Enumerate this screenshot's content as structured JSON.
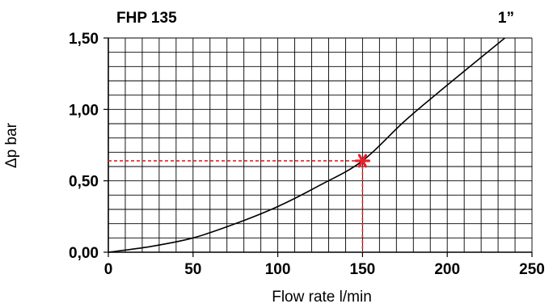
{
  "chart_data": {
    "type": "line",
    "title": "FHP 135",
    "title_right": "1”",
    "xlabel": "Flow rate l/min",
    "ylabel": "Δp bar",
    "xlim": [
      0,
      250
    ],
    "ylim": [
      0,
      1.5
    ],
    "x_ticks": [
      0,
      50,
      100,
      150,
      200,
      250
    ],
    "x_tick_labels": [
      "0",
      "50",
      "100",
      "150",
      "200",
      "250"
    ],
    "y_ticks": [
      0,
      0.5,
      1.0,
      1.5
    ],
    "y_tick_labels": [
      "0,00",
      "0,50",
      "1,00",
      "1,50"
    ],
    "grid": true,
    "x_grid_step": 10,
    "y_grid_step": 0.1,
    "series": [
      {
        "x": [
          0,
          25,
          50,
          75,
          100,
          125,
          150,
          175,
          200,
          234
        ],
        "y": [
          0.0,
          0.04,
          0.1,
          0.2,
          0.32,
          0.47,
          0.64,
          0.92,
          1.17,
          1.5
        ]
      }
    ],
    "marker": {
      "x": 150,
      "y": 0.64,
      "color": "#e8202a"
    },
    "colors": {
      "curve": "#000000",
      "grid": "#000000",
      "marker": "#e8202a"
    }
  }
}
